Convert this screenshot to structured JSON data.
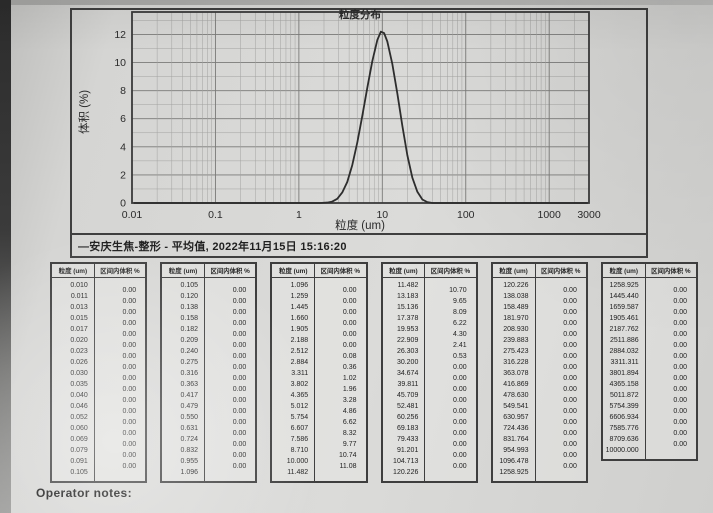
{
  "chart_data": {
    "type": "line",
    "title": "粒度分布",
    "xlabel": "粒度 (um)",
    "ylabel": "体积 (%)",
    "x_scale": "log",
    "grid": true,
    "xlim": [
      0.01,
      3000
    ],
    "ylim": [
      0,
      13.6
    ],
    "x_ticks": [
      0.01,
      0.1,
      1,
      10,
      100,
      1000,
      3000
    ],
    "x_tick_labels": [
      "0.01",
      "0.1",
      "1",
      "10",
      "100",
      "1000",
      "3000"
    ],
    "y_ticks": [
      0,
      2,
      4,
      6,
      8,
      10,
      12
    ],
    "series": [
      {
        "name": "安庆生焦-整形 - 平均值",
        "x": [
          0.0105,
          1.8,
          2.2,
          2.512,
          2.884,
          3.311,
          3.802,
          4.365,
          5.012,
          5.754,
          6.607,
          7.586,
          8.71,
          9.6,
          10.5,
          11.482,
          13.183,
          15.136,
          17.378,
          19.953,
          22.909,
          26.303,
          30.2,
          34.674,
          40,
          2900
        ],
        "y": [
          0,
          0,
          0.03,
          0.1,
          0.3,
          0.75,
          1.5,
          2.7,
          4.3,
          6.2,
          8.2,
          10.1,
          11.6,
          12.2,
          12.1,
          11.5,
          9.9,
          7.8,
          5.5,
          3.4,
          1.8,
          0.8,
          0.25,
          0.06,
          0,
          0
        ]
      }
    ]
  },
  "caption": "—安庆生焦-整形 - 平均值, 2022年11月15日 15:16:20",
  "tables": {
    "size_header": "粒度 (um)",
    "volume_header": "区间内体积 %",
    "blocks": [
      {
        "sizes": [
          "0.010",
          "0.011",
          "0.013",
          "0.015",
          "0.017",
          "0.020",
          "0.023",
          "0.026",
          "0.030",
          "0.035",
          "0.040",
          "0.046",
          "0.052",
          "0.060",
          "0.069",
          "0.079",
          "0.091",
          "0.105"
        ],
        "volumes": [
          "0.00",
          "0.00",
          "0.00",
          "0.00",
          "0.00",
          "0.00",
          "0.00",
          "0.00",
          "0.00",
          "0.00",
          "0.00",
          "0.00",
          "0.00",
          "0.00",
          "0.00",
          "0.00",
          "0.00"
        ]
      },
      {
        "sizes": [
          "0.105",
          "0.120",
          "0.138",
          "0.158",
          "0.182",
          "0.209",
          "0.240",
          "0.275",
          "0.316",
          "0.363",
          "0.417",
          "0.479",
          "0.550",
          "0.631",
          "0.724",
          "0.832",
          "0.955",
          "1.096"
        ],
        "volumes": [
          "0.00",
          "0.00",
          "0.00",
          "0.00",
          "0.00",
          "0.00",
          "0.00",
          "0.00",
          "0.00",
          "0.00",
          "0.00",
          "0.00",
          "0.00",
          "0.00",
          "0.00",
          "0.00",
          "0.00"
        ]
      },
      {
        "sizes": [
          "1.096",
          "1.259",
          "1.445",
          "1.660",
          "1.905",
          "2.188",
          "2.512",
          "2.884",
          "3.311",
          "3.802",
          "4.365",
          "5.012",
          "5.754",
          "6.607",
          "7.586",
          "8.710",
          "10.000",
          "11.482"
        ],
        "volumes": [
          "0.00",
          "0.00",
          "0.00",
          "0.00",
          "0.00",
          "0.00",
          "0.08",
          "0.36",
          "1.02",
          "1.96",
          "3.28",
          "4.86",
          "6.62",
          "8.32",
          "9.77",
          "10.74",
          "11.08"
        ]
      },
      {
        "sizes": [
          "11.482",
          "13.183",
          "15.136",
          "17.378",
          "19.953",
          "22.909",
          "26.303",
          "30.200",
          "34.674",
          "39.811",
          "45.709",
          "52.481",
          "60.256",
          "69.183",
          "79.433",
          "91.201",
          "104.713",
          "120.226"
        ],
        "volumes": [
          "10.70",
          "9.65",
          "8.09",
          "6.22",
          "4.30",
          "2.41",
          "0.53",
          "0.00",
          "0.00",
          "0.00",
          "0.00",
          "0.00",
          "0.00",
          "0.00",
          "0.00",
          "0.00",
          "0.00"
        ]
      },
      {
        "sizes": [
          "120.226",
          "138.038",
          "158.489",
          "181.970",
          "208.930",
          "239.883",
          "275.423",
          "316.228",
          "363.078",
          "416.869",
          "478.630",
          "549.541",
          "630.957",
          "724.436",
          "831.764",
          "954.993",
          "1096.478",
          "1258.925"
        ],
        "volumes": [
          "0.00",
          "0.00",
          "0.00",
          "0.00",
          "0.00",
          "0.00",
          "0.00",
          "0.00",
          "0.00",
          "0.00",
          "0.00",
          "0.00",
          "0.00",
          "0.00",
          "0.00",
          "0.00",
          "0.00"
        ]
      },
      {
        "sizes": [
          "1258.925",
          "1445.440",
          "1659.587",
          "1905.461",
          "2187.762",
          "2511.886",
          "2884.032",
          "3311.311",
          "3801.894",
          "4365.158",
          "5011.872",
          "5754.399",
          "6606.934",
          "7585.776",
          "8709.636",
          "10000.000"
        ],
        "volumes": [
          "0.00",
          "0.00",
          "0.00",
          "0.00",
          "0.00",
          "0.00",
          "0.00",
          "0.00",
          "0.00",
          "0.00",
          "0.00",
          "0.00",
          "0.00",
          "0.00",
          "0.00"
        ]
      }
    ]
  },
  "operator_notes": "Operator notes:"
}
